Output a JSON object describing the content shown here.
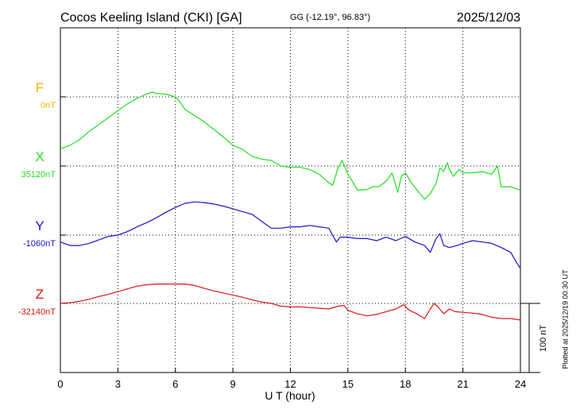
{
  "header": {
    "station": "Cocos Keeling Island (CKI)  [GA]",
    "coords": "GG (-12.19°,  96.83°)",
    "date": "2025/12/03"
  },
  "footer": {
    "plotted": "Plotted at 2025/12/19 00:30 UT"
  },
  "chart_data": {
    "type": "line",
    "xlabel": "U T (hour)",
    "xlim": [
      0,
      24
    ],
    "x_ticks": [
      "0",
      "3",
      "6",
      "9",
      "12",
      "15",
      "18",
      "21",
      "24"
    ],
    "scale_bar": {
      "label": "100 nT",
      "value": 100
    },
    "grid": true,
    "series": [
      {
        "name": "F",
        "baseline_label": "0nT",
        "color": "#f0b400",
        "x": [],
        "values": []
      },
      {
        "name": "X",
        "baseline_label": "35120nT",
        "color": "#22dd22",
        "x": [
          0,
          0.5,
          1,
          1.5,
          2,
          2.5,
          3,
          3.5,
          4,
          4.5,
          4.8,
          5,
          5.5,
          6,
          6.2,
          6.5,
          7,
          7.5,
          8,
          8.5,
          9,
          9.5,
          10,
          10.5,
          11,
          11.5,
          12,
          12.5,
          13,
          13.5,
          14,
          14.2,
          14.5,
          14.7,
          15,
          15.3,
          15.5,
          16,
          16.3,
          16.6,
          17,
          17.3,
          17.6,
          17.8,
          18,
          18.3,
          18.7,
          19,
          19.3,
          19.6,
          19.8,
          20,
          20.2,
          20.3,
          20.5,
          20.8,
          21,
          21.5,
          22,
          22.5,
          22.8,
          23,
          23.5,
          24
        ],
        "values": [
          25,
          30,
          38,
          50,
          60,
          70,
          80,
          90,
          98,
          104,
          107,
          105,
          104,
          100,
          94,
          82,
          73,
          64,
          53,
          42,
          30,
          24,
          14,
          10,
          8,
          0,
          -2,
          -2,
          -5,
          -12,
          -24,
          -28,
          -2,
          8,
          -12,
          -25,
          -35,
          -34,
          -30,
          -30,
          -22,
          -10,
          -38,
          -14,
          -10,
          -24,
          -38,
          -48,
          -40,
          -25,
          -3,
          -8,
          5,
          -5,
          -15,
          -5,
          -10,
          -10,
          -8,
          -12,
          0,
          -30,
          -30,
          -35
        ]
      },
      {
        "name": "Y",
        "baseline_label": "-1060nT",
        "color": "#1515cc",
        "x": [
          0,
          0.5,
          1,
          1.5,
          2,
          2.5,
          3,
          3.5,
          4,
          4.5,
          5,
          5.5,
          6,
          6.5,
          7,
          7.5,
          8,
          8.5,
          9,
          9.5,
          10,
          10.5,
          11,
          11.5,
          12,
          12.5,
          13,
          13.5,
          14,
          14.2,
          14.4,
          14.6,
          15,
          15.5,
          16,
          16.5,
          17,
          17.5,
          18,
          18.5,
          19,
          19.3,
          19.6,
          19.8,
          20,
          20.3,
          20.7,
          21,
          21.5,
          22,
          22.5,
          23,
          23.5,
          23.8,
          24
        ],
        "values": [
          -10,
          -15,
          -15,
          -12,
          -7,
          -2,
          0,
          5,
          12,
          18,
          25,
          33,
          40,
          46,
          48,
          47,
          45,
          42,
          38,
          34,
          30,
          20,
          10,
          10,
          12,
          12,
          14,
          12,
          10,
          0,
          -10,
          -3,
          -3,
          -5,
          -5,
          -8,
          -3,
          -8,
          -2,
          -10,
          -15,
          -25,
          -5,
          2,
          -15,
          -18,
          -15,
          -12,
          -8,
          -10,
          -12,
          -18,
          -25,
          -40,
          -48
        ]
      },
      {
        "name": "Z",
        "baseline_label": "-32140nT",
        "color": "#dd1515",
        "x": [
          0,
          0.5,
          1,
          1.5,
          2,
          2.5,
          3,
          3.5,
          4,
          4.5,
          5,
          5.5,
          6,
          6.5,
          7,
          7.5,
          8,
          8.5,
          9,
          9.5,
          10,
          10.5,
          11,
          11.5,
          12,
          12.5,
          13,
          13.5,
          14,
          14.5,
          14.8,
          15,
          15.5,
          16,
          16.5,
          17,
          17.5,
          17.9,
          18.2,
          18.6,
          19,
          19.3,
          19.5,
          19.7,
          20,
          20.3,
          20.6,
          21,
          21.5,
          22,
          22.5,
          23,
          23.5,
          24
        ],
        "values": [
          0,
          1,
          3,
          6,
          10,
          13,
          17,
          21,
          25,
          27,
          28,
          28,
          28,
          28,
          26,
          22,
          18,
          15,
          12,
          9,
          5,
          2,
          0,
          -4,
          -5,
          -5,
          -6,
          -7,
          -8,
          -4,
          -3,
          -10,
          -15,
          -18,
          -16,
          -12,
          -8,
          -2,
          -10,
          -15,
          -22,
          -8,
          0,
          -5,
          -15,
          -8,
          -12,
          -13,
          -14,
          -16,
          -20,
          -22,
          -22,
          -24
        ]
      }
    ]
  }
}
